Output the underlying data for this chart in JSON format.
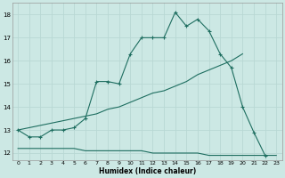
{
  "xlabel": "Humidex (Indice chaleur)",
  "bg_color": "#cce8e4",
  "grid_color": "#b8d8d4",
  "line_color": "#1e6e60",
  "xlim": [
    -0.5,
    23.5
  ],
  "ylim": [
    11.7,
    18.5
  ],
  "xticks": [
    0,
    1,
    2,
    3,
    4,
    5,
    6,
    7,
    8,
    9,
    10,
    11,
    12,
    13,
    14,
    15,
    16,
    17,
    18,
    19,
    20,
    21,
    22,
    23
  ],
  "yticks": [
    12,
    13,
    14,
    15,
    16,
    17,
    18
  ],
  "line1_x": [
    0,
    1,
    2,
    3,
    4,
    5,
    6,
    7,
    8,
    9,
    10,
    11,
    12,
    13,
    14,
    15,
    16,
    17,
    18,
    19,
    20,
    21,
    22
  ],
  "line1_y": [
    13.0,
    12.7,
    12.7,
    13.0,
    13.0,
    13.1,
    13.5,
    15.1,
    15.1,
    15.0,
    16.3,
    17.0,
    17.0,
    17.0,
    18.1,
    17.5,
    17.8,
    17.3,
    16.3,
    15.7,
    14.0,
    12.9,
    11.9
  ],
  "line2_x": [
    0,
    1,
    2,
    3,
    4,
    5,
    6,
    7,
    8,
    9,
    10,
    11,
    12,
    13,
    14,
    15,
    16,
    17,
    18,
    19,
    20
  ],
  "line2_y": [
    13.0,
    13.1,
    13.2,
    13.3,
    13.4,
    13.5,
    13.6,
    13.7,
    13.9,
    14.0,
    14.2,
    14.4,
    14.6,
    14.7,
    14.9,
    15.1,
    15.4,
    15.6,
    15.8,
    16.0,
    16.3
  ],
  "line3_x": [
    0,
    1,
    2,
    3,
    4,
    5,
    6,
    7,
    8,
    9,
    10,
    11,
    12,
    13,
    14,
    15,
    16,
    17,
    18,
    19,
    20,
    21,
    22,
    23
  ],
  "line3_y": [
    12.2,
    12.2,
    12.2,
    12.2,
    12.2,
    12.2,
    12.1,
    12.1,
    12.1,
    12.1,
    12.1,
    12.1,
    12.0,
    12.0,
    12.0,
    12.0,
    12.0,
    11.9,
    11.9,
    11.9,
    11.9,
    11.9,
    11.9,
    11.9
  ]
}
